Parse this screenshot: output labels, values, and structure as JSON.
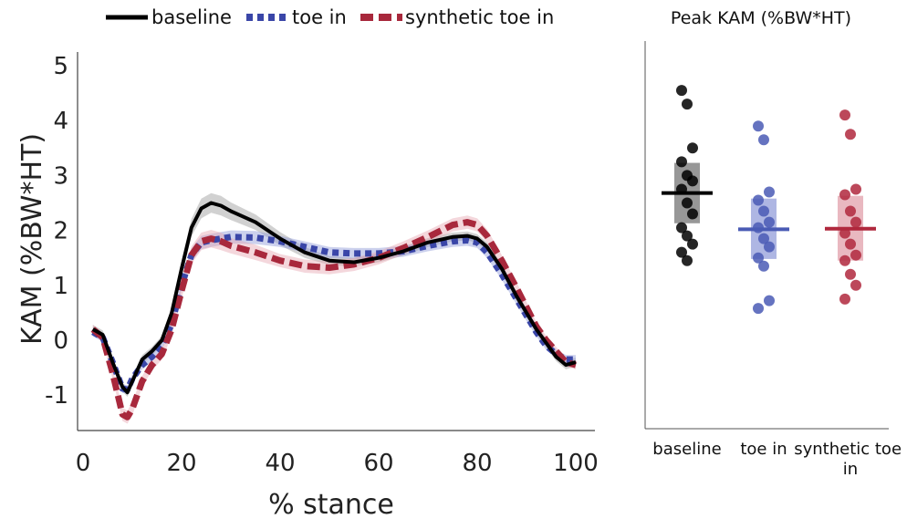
{
  "chart_data": [
    {
      "type": "line",
      "xlabel": "% stance",
      "ylabel": "KAM (%BW*HT)",
      "xlim": [
        0,
        100
      ],
      "ylim": [
        -1.6,
        5.2
      ],
      "xticks": [
        0,
        20,
        40,
        60,
        80,
        100
      ],
      "yticks": [
        -1,
        0,
        1,
        2,
        3,
        4,
        5
      ],
      "grid": false,
      "legend_position": "top",
      "series": [
        {
          "name": "baseline",
          "color": "#000000",
          "style": "solid",
          "band_color": "#9a9a9a",
          "x": [
            2,
            4,
            6,
            8,
            9,
            10,
            12,
            14,
            16,
            18,
            20,
            22,
            24,
            26,
            28,
            30,
            35,
            40,
            45,
            50,
            55,
            60,
            65,
            70,
            75,
            78,
            80,
            82,
            85,
            88,
            90,
            92,
            94,
            96,
            98,
            100
          ],
          "y": [
            0.2,
            0.1,
            -0.4,
            -0.85,
            -0.95,
            -0.75,
            -0.35,
            -0.2,
            0.0,
            0.5,
            1.3,
            2.05,
            2.4,
            2.5,
            2.45,
            2.35,
            2.15,
            1.85,
            1.6,
            1.45,
            1.42,
            1.5,
            1.62,
            1.78,
            1.88,
            1.9,
            1.85,
            1.7,
            1.3,
            0.8,
            0.5,
            0.2,
            -0.05,
            -0.3,
            -0.45,
            -0.4
          ],
          "band": [
            0.08,
            0.08,
            0.08,
            0.08,
            0.08,
            0.08,
            0.08,
            0.08,
            0.08,
            0.1,
            0.14,
            0.16,
            0.18,
            0.18,
            0.18,
            0.16,
            0.14,
            0.12,
            0.1,
            0.08,
            0.08,
            0.08,
            0.08,
            0.08,
            0.08,
            0.08,
            0.08,
            0.08,
            0.08,
            0.08,
            0.08,
            0.08,
            0.08,
            0.08,
            0.08,
            0.08
          ]
        },
        {
          "name": "toe in",
          "color": "#3a46a8",
          "style": "dotted",
          "band_color": "#8f99d6",
          "x": [
            2,
            4,
            6,
            8,
            9,
            10,
            12,
            14,
            16,
            18,
            20,
            22,
            24,
            26,
            28,
            30,
            35,
            40,
            45,
            50,
            55,
            60,
            65,
            70,
            75,
            78,
            80,
            82,
            85,
            88,
            90,
            92,
            94,
            96,
            98,
            100
          ],
          "y": [
            0.15,
            0.05,
            -0.4,
            -0.88,
            -0.9,
            -0.7,
            -0.45,
            -0.3,
            -0.1,
            0.3,
            1.0,
            1.55,
            1.78,
            1.82,
            1.85,
            1.88,
            1.87,
            1.8,
            1.7,
            1.6,
            1.58,
            1.58,
            1.62,
            1.72,
            1.8,
            1.82,
            1.78,
            1.6,
            1.2,
            0.75,
            0.45,
            0.15,
            -0.1,
            -0.25,
            -0.35,
            -0.35
          ],
          "band": [
            0.08,
            0.08,
            0.08,
            0.08,
            0.08,
            0.08,
            0.08,
            0.08,
            0.08,
            0.08,
            0.1,
            0.12,
            0.12,
            0.12,
            0.12,
            0.12,
            0.12,
            0.1,
            0.1,
            0.1,
            0.1,
            0.1,
            0.1,
            0.1,
            0.1,
            0.1,
            0.1,
            0.1,
            0.1,
            0.1,
            0.1,
            0.08,
            0.08,
            0.08,
            0.08,
            0.08
          ]
        },
        {
          "name": "synthetic toe in",
          "color": "#a8283c",
          "style": "dashed",
          "band_color": "#e7a7b1",
          "x": [
            2,
            4,
            6,
            8,
            9,
            10,
            12,
            14,
            16,
            18,
            20,
            22,
            24,
            26,
            28,
            30,
            35,
            40,
            45,
            50,
            55,
            60,
            65,
            70,
            75,
            78,
            80,
            82,
            85,
            88,
            90,
            92,
            94,
            96,
            98,
            100
          ],
          "y": [
            0.2,
            0.05,
            -0.6,
            -1.35,
            -1.4,
            -1.25,
            -0.75,
            -0.45,
            -0.25,
            0.2,
            0.9,
            1.55,
            1.8,
            1.85,
            1.8,
            1.72,
            1.6,
            1.45,
            1.35,
            1.32,
            1.38,
            1.5,
            1.68,
            1.88,
            2.1,
            2.15,
            2.1,
            1.9,
            1.45,
            0.95,
            0.6,
            0.25,
            0.0,
            -0.2,
            -0.4,
            -0.45
          ],
          "band": [
            0.08,
            0.08,
            0.1,
            0.12,
            0.12,
            0.12,
            0.1,
            0.1,
            0.1,
            0.12,
            0.14,
            0.16,
            0.16,
            0.16,
            0.16,
            0.14,
            0.14,
            0.12,
            0.12,
            0.12,
            0.12,
            0.12,
            0.12,
            0.12,
            0.12,
            0.12,
            0.12,
            0.12,
            0.1,
            0.1,
            0.1,
            0.08,
            0.08,
            0.08,
            0.08,
            0.08
          ]
        }
      ]
    },
    {
      "type": "scatter",
      "title": "Peak KAM (%BW*HT)",
      "categories": [
        "baseline",
        "toe in",
        "synthetic toe in"
      ],
      "ylim": [
        -1.6,
        5.2
      ],
      "series": [
        {
          "name": "baseline",
          "color": "#000000",
          "box_color": "#7d7d7d",
          "mean": 2.68,
          "box_low": 2.13,
          "box_high": 3.23,
          "points": [
            4.55,
            4.3,
            3.5,
            3.25,
            3.0,
            2.9,
            2.75,
            2.5,
            2.3,
            2.05,
            1.9,
            1.75,
            1.6,
            1.45
          ]
        },
        {
          "name": "toe in",
          "color": "#4a5bb5",
          "box_color": "#9aa4dc",
          "mean": 2.02,
          "box_low": 1.48,
          "box_high": 2.58,
          "points": [
            3.9,
            3.65,
            2.7,
            2.55,
            2.35,
            2.15,
            2.05,
            1.85,
            1.7,
            1.5,
            1.35,
            0.72,
            0.58
          ]
        },
        {
          "name": "synthetic toe in",
          "color": "#b0283d",
          "box_color": "#e4a6b0",
          "mean": 2.03,
          "box_low": 1.45,
          "box_high": 2.63,
          "points": [
            4.1,
            3.75,
            2.75,
            2.65,
            2.35,
            2.15,
            1.95,
            1.75,
            1.55,
            1.45,
            1.2,
            1.0,
            0.75
          ]
        }
      ]
    }
  ]
}
